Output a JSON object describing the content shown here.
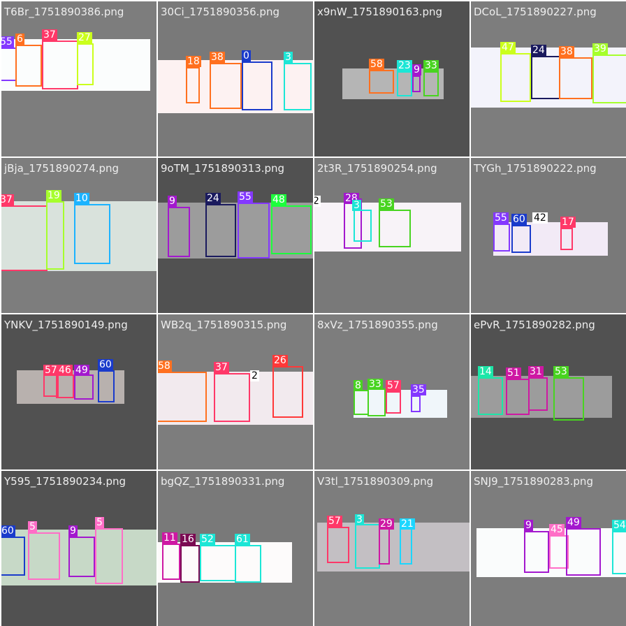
{
  "tiles": [
    {
      "title": "T6Br_1751890386.png",
      "labels": [
        {
          "cls": "55",
          "color": "#8438ff"
        },
        {
          "cls": "6",
          "color": "#ff701f"
        },
        {
          "cls": "37",
          "color": "#ff3868"
        },
        {
          "cls": "27",
          "color": "#cbff1c"
        }
      ]
    },
    {
      "title": "30Ci_1751890356.png",
      "labels": [
        {
          "cls": "18",
          "color": "#ff701f"
        },
        {
          "cls": "38",
          "color": "#ff701f"
        },
        {
          "cls": "0",
          "color": "#1a3bcb"
        },
        {
          "cls": "3",
          "color": "#1ce6d6"
        }
      ]
    },
    {
      "title": "x9nW_1751890163.png",
      "labels": [
        {
          "cls": "58",
          "color": "#ff701f"
        },
        {
          "cls": "23",
          "color": "#1ce6d6"
        },
        {
          "cls": "9",
          "color": "#a318ce"
        },
        {
          "cls": "33",
          "color": "#48d420"
        }
      ]
    },
    {
      "title": "DCoL_1751890227.png",
      "labels": [
        {
          "cls": "47",
          "color": "#cbff1c"
        },
        {
          "cls": "24",
          "color": "#1a1a5e"
        },
        {
          "cls": "38",
          "color": "#ff701f"
        },
        {
          "cls": "39",
          "color": "#a6ff2c"
        }
      ]
    },
    {
      "title": "jBja_1751890274.png",
      "labels": [
        {
          "cls": "37",
          "color": "#ff3868"
        },
        {
          "cls": "19",
          "color": "#a6ff2c"
        },
        {
          "cls": "10",
          "color": "#1cb3ff"
        }
      ]
    },
    {
      "title": "9oTM_1751890313.png",
      "labels": [
        {
          "cls": "9",
          "color": "#a318ce"
        },
        {
          "cls": "24",
          "color": "#1a1a5e"
        },
        {
          "cls": "55",
          "color": "#8438ff"
        },
        {
          "cls": "48",
          "color": "#1cff3c"
        }
      ]
    },
    {
      "title": "2t3R_1751890254.png",
      "labels": [
        {
          "cls": "2",
          "color": "#ffffff"
        },
        {
          "cls": "28",
          "color": "#a318ce"
        },
        {
          "cls": "3",
          "color": "#1ce6d6"
        },
        {
          "cls": "53",
          "color": "#48d420"
        }
      ]
    },
    {
      "title": "TYGh_1751890222.png",
      "labels": [
        {
          "cls": "55",
          "color": "#8438ff"
        },
        {
          "cls": "60",
          "color": "#1a3bcb"
        },
        {
          "cls": "42",
          "color": "#ffffff"
        },
        {
          "cls": "17",
          "color": "#ff3868"
        }
      ]
    },
    {
      "title": "YNKV_1751890149.png",
      "labels": [
        {
          "cls": "57",
          "color": "#ff3868"
        },
        {
          "cls": "46",
          "color": "#ff3868"
        },
        {
          "cls": "49",
          "color": "#a318ce"
        },
        {
          "cls": "60",
          "color": "#1a3bcb"
        }
      ]
    },
    {
      "title": "WB2q_1751890315.png",
      "labels": [
        {
          "cls": "58",
          "color": "#ff701f"
        },
        {
          "cls": "37",
          "color": "#ff3868"
        },
        {
          "cls": "2",
          "color": "#ffffff"
        },
        {
          "cls": "26",
          "color": "#ff3838"
        }
      ]
    },
    {
      "title": "8xVz_1751890355.png",
      "labels": [
        {
          "cls": "8",
          "color": "#48d420"
        },
        {
          "cls": "33",
          "color": "#48d420"
        },
        {
          "cls": "57",
          "color": "#ff3868"
        },
        {
          "cls": "35",
          "color": "#8438ff"
        }
      ]
    },
    {
      "title": "ePvR_1751890282.png",
      "labels": [
        {
          "cls": "14",
          "color": "#1ce6a8"
        },
        {
          "cls": "51",
          "color": "#ce18a3"
        },
        {
          "cls": "31",
          "color": "#ce18a3"
        },
        {
          "cls": "53",
          "color": "#48d420"
        }
      ]
    },
    {
      "title": "Y595_1751890234.png",
      "labels": [
        {
          "cls": "60",
          "color": "#1a3bcb"
        },
        {
          "cls": "5",
          "color": "#ff6ec7"
        },
        {
          "cls": "9",
          "color": "#a318ce"
        },
        {
          "cls": "5",
          "color": "#ff6ec7"
        }
      ]
    },
    {
      "title": "bgQZ_1751890331.png",
      "labels": [
        {
          "cls": "11",
          "color": "#ce18a3"
        },
        {
          "cls": "16",
          "color": "#7a0a52"
        },
        {
          "cls": "52",
          "color": "#1ce6d6"
        },
        {
          "cls": "61",
          "color": "#1ce6d6"
        }
      ]
    },
    {
      "title": "V3tl_1751890309.png",
      "labels": [
        {
          "cls": "57",
          "color": "#ff3868"
        },
        {
          "cls": "3",
          "color": "#1ce6d6"
        },
        {
          "cls": "29",
          "color": "#ce18a3"
        },
        {
          "cls": "21",
          "color": "#1cd6ff"
        }
      ]
    },
    {
      "title": "SNJ9_1751890283.png",
      "labels": [
        {
          "cls": "9",
          "color": "#a318ce"
        },
        {
          "cls": "45",
          "color": "#ff6ec7"
        },
        {
          "cls": "49",
          "color": "#a318ce"
        },
        {
          "cls": "54",
          "color": "#1ce6d6"
        }
      ]
    }
  ]
}
